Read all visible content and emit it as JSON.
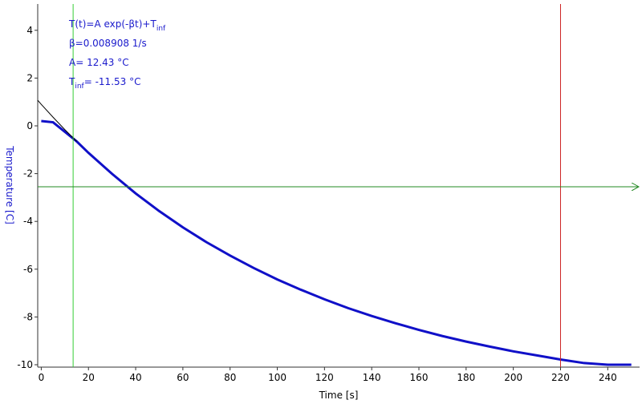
{
  "chart_data": {
    "type": "line",
    "xlabel": "Time [s]",
    "ylabel": "Temperature [C]",
    "xlim": [
      -1.5,
      253.5
    ],
    "ylim": [
      -10.1,
      5.1
    ],
    "xticks": [
      0,
      20,
      40,
      60,
      80,
      100,
      120,
      140,
      160,
      180,
      200,
      220,
      240
    ],
    "yticks": [
      -10,
      -8,
      -6,
      -4,
      -2,
      0,
      2,
      4
    ],
    "series": [
      {
        "name": "Data",
        "color": "#1010c8",
        "x": [
          0,
          5,
          10,
          15,
          20,
          30,
          40,
          50,
          60,
          70,
          80,
          90,
          100,
          110,
          120,
          130,
          140,
          150,
          160,
          170,
          180,
          190,
          200,
          210,
          220,
          230,
          240,
          250
        ],
        "values": [
          0.2,
          0.15,
          -0.25,
          -0.65,
          -1.13,
          -2.01,
          -2.83,
          -3.57,
          -4.25,
          -4.87,
          -5.43,
          -5.95,
          -6.43,
          -6.86,
          -7.26,
          -7.63,
          -7.96,
          -8.26,
          -8.54,
          -8.8,
          -9.03,
          -9.24,
          -9.44,
          -9.61,
          -9.78,
          -9.93,
          -10.0,
          -10.0
        ]
      },
      {
        "name": "Fit",
        "color": "#000000",
        "x": [
          -1.5,
          0,
          5,
          10,
          15
        ],
        "values": [
          1.07,
          0.9,
          0.36,
          -0.16,
          -0.65
        ]
      }
    ],
    "cursors": [
      {
        "axis": "x",
        "value": 13.5,
        "color": "#33cc33"
      },
      {
        "axis": "x",
        "value": 220,
        "color": "#cc2222"
      },
      {
        "axis": "y",
        "value": -2.55,
        "color": "#228822"
      }
    ],
    "annotation_color": "#1a1acc",
    "annotations": [
      [
        {
          "text": "T(t)=A exp(-βt)+T"
        },
        {
          "sub": "inf"
        }
      ],
      [
        {
          "text": "β=0.008908 1/s"
        }
      ],
      [
        {
          "text": "A= 12.43 °C"
        }
      ],
      [
        {
          "text": "T"
        },
        {
          "sub": "inf"
        },
        {
          "text": "= -11.53 °C"
        }
      ]
    ]
  }
}
